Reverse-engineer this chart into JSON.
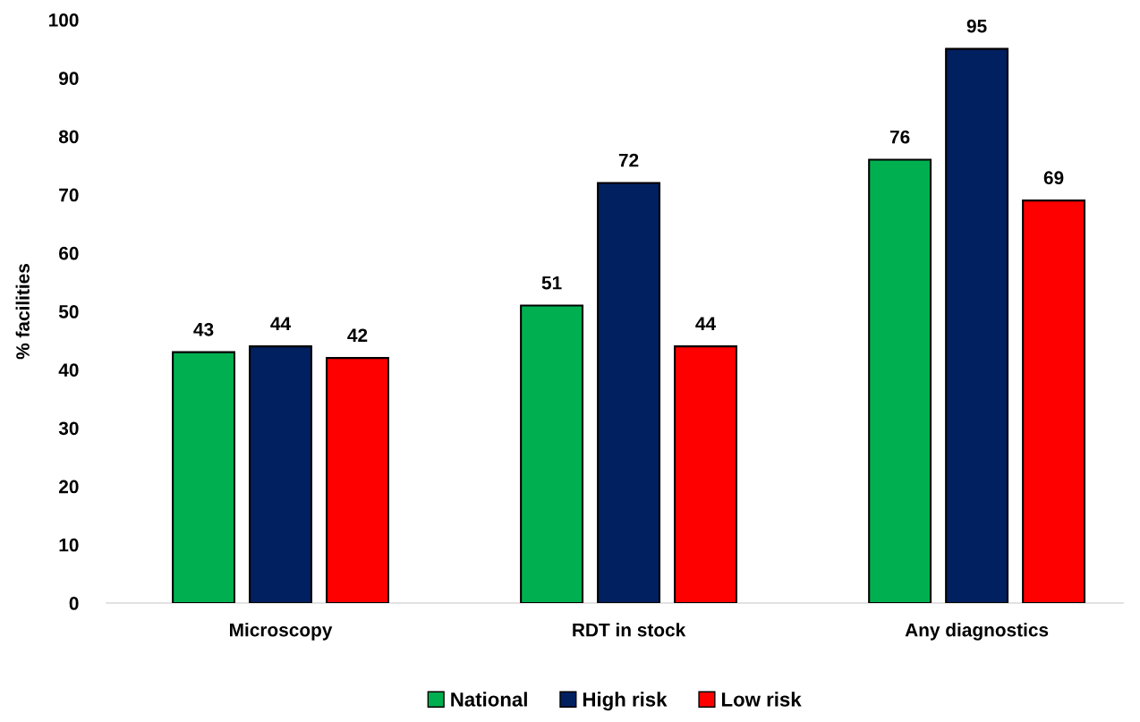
{
  "chart_data": {
    "type": "bar",
    "ylabel": "% facilities",
    "categories": [
      "Microscopy",
      "RDT in stock",
      "Any diagnostics"
    ],
    "series": [
      {
        "name": "National",
        "color": "#00b050",
        "values": [
          43,
          51,
          76
        ]
      },
      {
        "name": "High risk",
        "color": "#002060",
        "values": [
          44,
          72,
          95
        ]
      },
      {
        "name": "Low risk",
        "color": "#ff0000",
        "values": [
          42,
          44,
          69
        ]
      }
    ],
    "ylim": [
      0,
      100
    ],
    "yticks": [
      0,
      10,
      20,
      30,
      40,
      50,
      60,
      70,
      80,
      90,
      100
    ],
    "grid": false,
    "legend": "bottom",
    "data_labels": true
  }
}
